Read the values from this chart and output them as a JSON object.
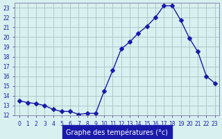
{
  "hours": [
    0,
    1,
    2,
    3,
    4,
    5,
    6,
    7,
    8,
    9,
    10,
    11,
    12,
    13,
    14,
    15,
    16,
    17,
    18,
    19,
    20,
    21,
    22,
    23
  ],
  "temperatures": [
    13.5,
    13.3,
    13.2,
    13.0,
    12.6,
    12.4,
    12.4,
    12.1,
    12.2,
    12.2,
    14.5,
    16.6,
    18.8,
    19.5,
    20.4,
    21.1,
    22.0,
    23.2,
    23.2,
    21.7,
    19.9,
    18.5,
    16.0,
    15.3
  ],
  "line_color": "#1a1aaa",
  "marker": "D",
  "marker_size": 3,
  "bg_color": "#d8f0f0",
  "grid_color": "#b0c8c8",
  "xlabel": "Graphe des températures (°c)",
  "xlabel_color": "#1a1aaa",
  "xlabel_bg": "#1a1aaa",
  "xlim": [
    -0.5,
    23.5
  ],
  "ylim": [
    12,
    23.5
  ],
  "yticks": [
    12,
    13,
    14,
    15,
    16,
    17,
    18,
    19,
    20,
    21,
    22,
    23
  ],
  "xticks": [
    0,
    1,
    2,
    3,
    4,
    5,
    6,
    7,
    8,
    9,
    10,
    11,
    12,
    13,
    14,
    15,
    16,
    17,
    18,
    19,
    20,
    21,
    22,
    23
  ],
  "tick_color": "#1a1aaa",
  "tick_label_color": "#1a1aaa",
  "axis_color": "#8888aa",
  "border_color": "#8888aa"
}
